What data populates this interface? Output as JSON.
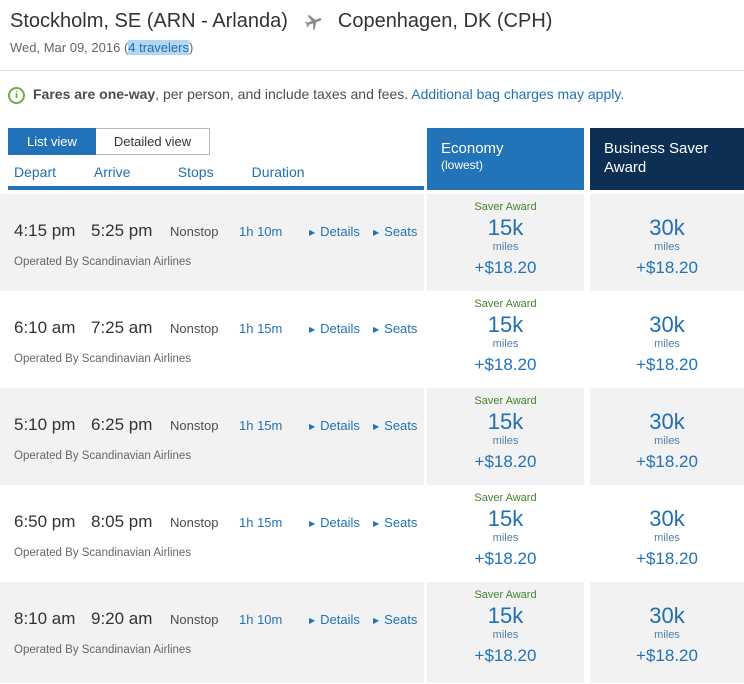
{
  "header": {
    "origin": "Stockholm, SE (ARN - Arlanda)",
    "destination": "Copenhagen, DK (CPH)",
    "date": "Wed, Mar 09, 2016",
    "open_paren": "(",
    "travelers": "4 travelers",
    "close_paren": ")"
  },
  "info_bar": {
    "icon_glyph": "i",
    "lead": "Fares are one-way",
    "rest": ", per person, and include taxes and fees. ",
    "link": "Additional bag charges may apply."
  },
  "tabs": {
    "list": "List view",
    "detailed": "Detailed view"
  },
  "columns": {
    "depart": "Depart",
    "arrive": "Arrive",
    "stops": "Stops",
    "duration": "Duration"
  },
  "fare_columns": {
    "economy_title": "Economy",
    "economy_subtitle": "(lowest)",
    "business_title": "Business Saver Award"
  },
  "rows": [
    {
      "depart": "4:15 pm",
      "arrive": "5:25 pm",
      "stops": "Nonstop",
      "duration": "1h 10m",
      "details": "Details",
      "seats": "Seats",
      "arrow": "▶",
      "operated_by": "Operated By Scandinavian Airlines",
      "economy": {
        "award_label": "Saver Award",
        "miles": "15k",
        "miles_label": "miles",
        "fees": "+$18.20"
      },
      "business": {
        "miles": "30k",
        "miles_label": "miles",
        "fees": "+$18.20"
      }
    },
    {
      "depart": "6:10 am",
      "arrive": "7:25 am",
      "stops": "Nonstop",
      "duration": "1h 15m",
      "details": "Details",
      "seats": "Seats",
      "arrow": "▶",
      "operated_by": "Operated By Scandinavian Airlines",
      "economy": {
        "award_label": "Saver Award",
        "miles": "15k",
        "miles_label": "miles",
        "fees": "+$18.20"
      },
      "business": {
        "miles": "30k",
        "miles_label": "miles",
        "fees": "+$18.20"
      }
    },
    {
      "depart": "5:10 pm",
      "arrive": "6:25 pm",
      "stops": "Nonstop",
      "duration": "1h 15m",
      "details": "Details",
      "seats": "Seats",
      "arrow": "▶",
      "operated_by": "Operated By Scandinavian Airlines",
      "economy": {
        "award_label": "Saver Award",
        "miles": "15k",
        "miles_label": "miles",
        "fees": "+$18.20"
      },
      "business": {
        "miles": "30k",
        "miles_label": "miles",
        "fees": "+$18.20"
      }
    },
    {
      "depart": "6:50 pm",
      "arrive": "8:05 pm",
      "stops": "Nonstop",
      "duration": "1h 15m",
      "details": "Details",
      "seats": "Seats",
      "arrow": "▶",
      "operated_by": "Operated By Scandinavian Airlines",
      "economy": {
        "award_label": "Saver Award",
        "miles": "15k",
        "miles_label": "miles",
        "fees": "+$18.20"
      },
      "business": {
        "miles": "30k",
        "miles_label": "miles",
        "fees": "+$18.20"
      }
    },
    {
      "depart": "8:10 am",
      "arrive": "9:20 am",
      "stops": "Nonstop",
      "duration": "1h 10m",
      "details": "Details",
      "seats": "Seats",
      "arrow": "▶",
      "operated_by": "Operated By Scandinavian Airlines",
      "economy": {
        "award_label": "Saver Award",
        "miles": "15k",
        "miles_label": "miles",
        "fees": "+$18.20"
      },
      "business": {
        "miles": "30k",
        "miles_label": "miles",
        "fees": "+$18.20"
      }
    }
  ],
  "colors": {
    "accent_blue": "#2172b8",
    "economy_header_blue": "#2273b8",
    "business_header_navy": "#0d2f53",
    "link_blue": "#1f6fb2",
    "saver_green": "#44822e",
    "info_icon_green": "#70ad47",
    "alt_row_gray": "#f2f2f2",
    "travelers_highlight": "#b3d7f2"
  }
}
